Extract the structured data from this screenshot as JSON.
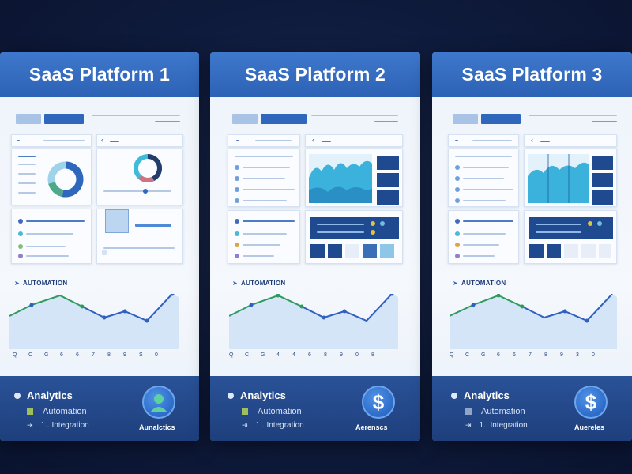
{
  "cards": [
    {
      "title": "SaaS Platform 1",
      "section_title": "AUTOMATION",
      "x_labels": [
        "Q",
        "C",
        "G",
        "6",
        "6",
        "7",
        "8",
        "9",
        "S",
        "0"
      ],
      "footer": {
        "item1": "Analytics",
        "item2": "Automation",
        "item3_prefix": "1.",
        "item3": ". Integration",
        "badge_label": "Aunalctics",
        "badge_icon": "user-avatar-icon"
      }
    },
    {
      "title": "SaaS Platform 2",
      "section_title": "AUTOMATION",
      "x_labels": [
        "Q",
        "C",
        "G",
        "4",
        "4",
        "6",
        "8",
        "9",
        "0",
        "8"
      ],
      "footer": {
        "item1": "Analytics",
        "item2": "Automation",
        "item3_prefix": "1.",
        "item3": ". Integration",
        "badge_label": "Aerenscs",
        "badge_icon": "dollar-icon"
      }
    },
    {
      "title": "SaaS Platform 3",
      "section_title": "AUTOMATION",
      "x_labels": [
        "Q",
        "C",
        "G",
        "6",
        "6",
        "7",
        "8",
        "9",
        "3",
        "0"
      ],
      "footer": {
        "item1": "Analytics",
        "item2": "Automation",
        "item3_prefix": "1.",
        "item3": ". Integration",
        "badge_label": "Auereles",
        "badge_icon": "dollar-icon"
      }
    }
  ],
  "colors": {
    "header": "#2d62b5",
    "footer": "#1e3f7c",
    "line_green": "#2f9a5e",
    "line_blue": "#2f5fc0",
    "area_fill": "#cfe3f7"
  }
}
